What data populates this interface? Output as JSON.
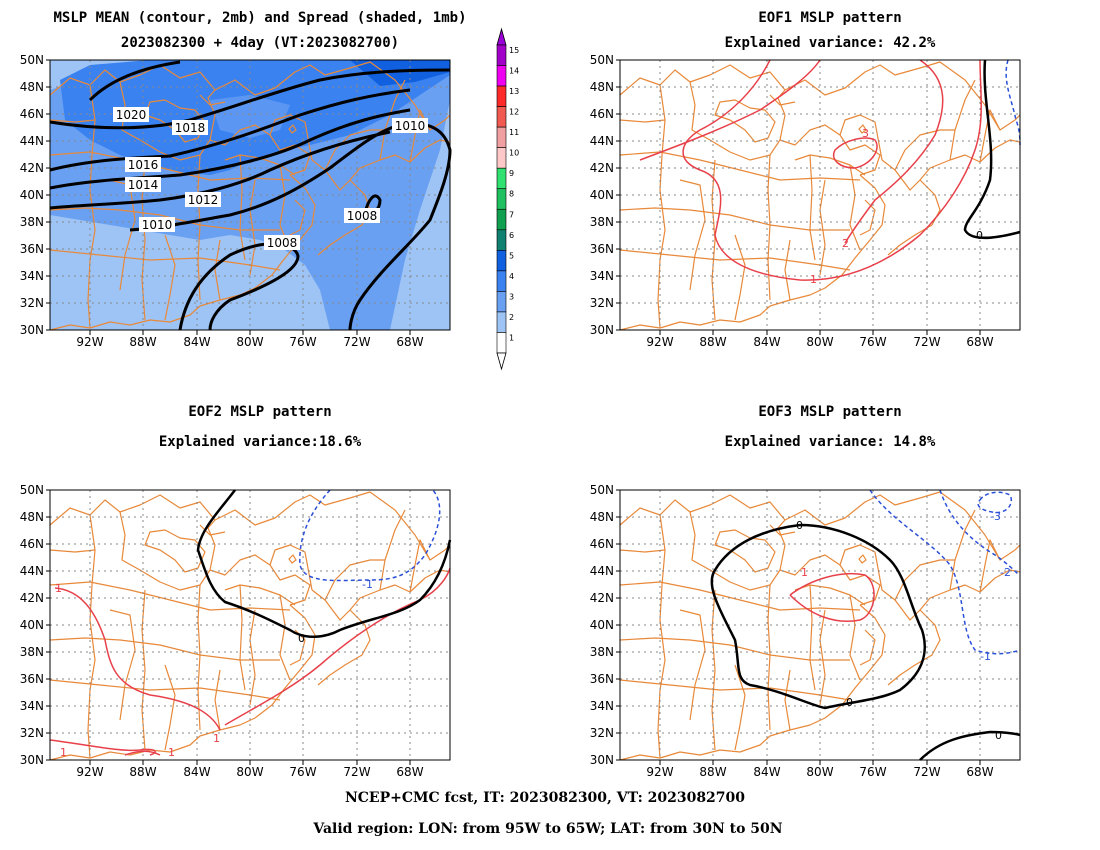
{
  "colors": {
    "coast": "#e8893a",
    "contour": "#000000",
    "positive": "#e8404a",
    "negative": "#2b50d8",
    "grid": "#888888"
  },
  "panels": [
    {
      "id": "mean",
      "title_lines": [
        "MSLP MEAN (contour, 2mb) and Spread (shaded, 1mb)",
        "2023082300 + 4day (VT:2023082700)"
      ]
    },
    {
      "id": "eof1",
      "title_lines": [
        "EOF1 MSLP pattern",
        "Explained variance: 42.2%"
      ]
    },
    {
      "id": "eof2",
      "title_lines": [
        "EOF2 MSLP pattern",
        "Explained variance:18.6%"
      ]
    },
    {
      "id": "eof3",
      "title_lines": [
        "EOF3 MSLP pattern",
        "Explained variance: 14.8%"
      ]
    }
  ],
  "axes": {
    "lon_ticks": [
      "92W",
      "88W",
      "84W",
      "80W",
      "76W",
      "72W",
      "68W"
    ],
    "lat_ticks": [
      "50N",
      "48N",
      "46N",
      "44N",
      "42N",
      "40N",
      "38N",
      "36N",
      "34N",
      "32N",
      "30N"
    ]
  },
  "colorbar": {
    "labels": [
      "15",
      "14",
      "13",
      "12",
      "11",
      "10",
      "9",
      "8",
      "7",
      "6",
      "5",
      "4",
      "3",
      "2",
      "1"
    ],
    "colors": [
      "#a000c8",
      "#f000f0",
      "#ff2a2a",
      "#f05a50",
      "#f0a0a0",
      "#ffc8c8",
      "#30e070",
      "#20c060",
      "#10a050",
      "#108070",
      "#1060e0",
      "#3a82f0",
      "#6aa0f2",
      "#9ec4f6",
      "#ffffff"
    ]
  },
  "mean_panel": {
    "contour_labels": [
      "1020",
      "1018",
      "1016",
      "1014",
      "1012",
      "1010",
      "1010",
      "1008",
      "1008"
    ]
  },
  "eof1_panel": {
    "contour_labels": [
      "3",
      "2",
      "1",
      "0"
    ]
  },
  "eof2_panel": {
    "contour_labels": [
      "1",
      "1",
      "1",
      "1",
      "0",
      "-1"
    ]
  },
  "eof3_panel": {
    "contour_labels": [
      "0",
      "0",
      "0",
      "1",
      "-1",
      "-2",
      "-3"
    ]
  },
  "footer": {
    "line1": "NCEP+CMC fcst, IT: 2023082300, VT: 2023082700",
    "line2": "Valid region: LON: from 95W to 65W; LAT: from 30N to 50N"
  }
}
